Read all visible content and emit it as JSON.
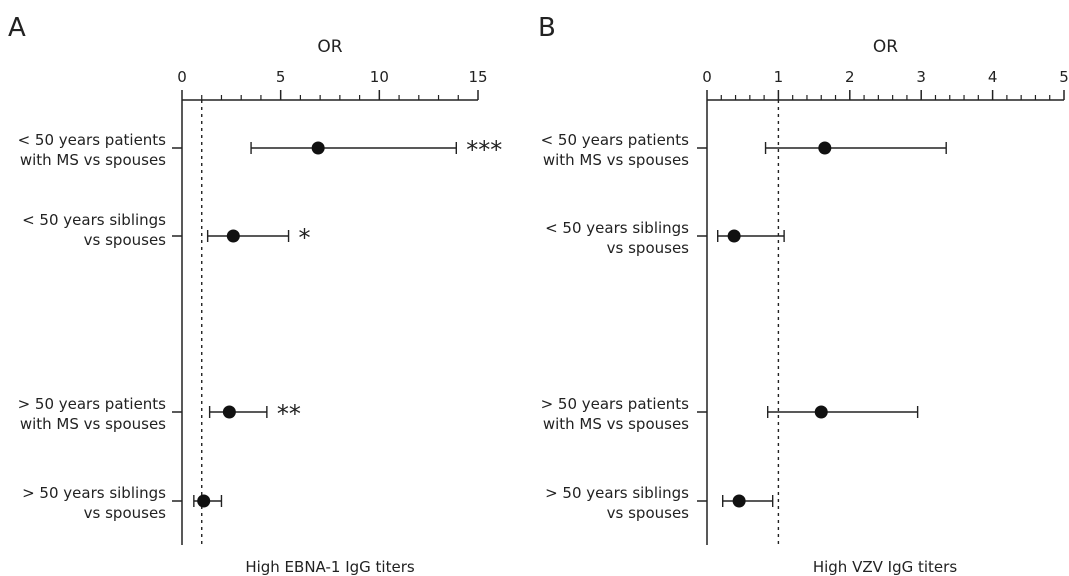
{
  "chart_data": [
    {
      "panel": "A",
      "type": "forest",
      "xlabel": "OR",
      "title": "High EBNA-1 IgG titers",
      "xlim": [
        0,
        15
      ],
      "major_ticks": [
        0,
        5,
        10,
        15
      ],
      "minor_tick_step": 1,
      "reference_line": 1,
      "rows": [
        {
          "label_lines": [
            "< 50 years patients",
            "with MS vs spouses"
          ],
          "estimate": 6.9,
          "lower": 3.5,
          "upper": 13.9,
          "sig": "***"
        },
        {
          "label_lines": [
            "< 50 years siblings",
            "vs spouses"
          ],
          "estimate": 2.6,
          "lower": 1.3,
          "upper": 5.4,
          "sig": "*"
        },
        {
          "label_lines": [
            "> 50 years patients",
            "with MS vs spouses"
          ],
          "estimate": 2.4,
          "lower": 1.4,
          "upper": 4.3,
          "sig": "**"
        },
        {
          "label_lines": [
            "> 50 years siblings",
            "vs spouses"
          ],
          "estimate": 1.1,
          "lower": 0.6,
          "upper": 2.0,
          "sig": ""
        }
      ]
    },
    {
      "panel": "B",
      "type": "forest",
      "xlabel": "OR",
      "title": "High VZV IgG titers",
      "xlim": [
        0,
        5
      ],
      "major_ticks": [
        0,
        1,
        2,
        3,
        4,
        5
      ],
      "minor_tick_step": 0.2,
      "reference_line": 1,
      "rows": [
        {
          "label_lines": [
            "< 50 years patients",
            "with MS vs spouses"
          ],
          "estimate": 1.65,
          "lower": 0.82,
          "upper": 3.35,
          "sig": ""
        },
        {
          "label_lines": [
            "< 50 years siblings",
            "vs spouses"
          ],
          "estimate": 0.38,
          "lower": 0.15,
          "upper": 1.08,
          "sig": ""
        },
        {
          "label_lines": [
            "> 50 years patients",
            "with MS vs spouses"
          ],
          "estimate": 1.6,
          "lower": 0.85,
          "upper": 2.95,
          "sig": ""
        },
        {
          "label_lines": [
            "> 50 years siblings",
            "vs spouses"
          ],
          "estimate": 0.45,
          "lower": 0.22,
          "upper": 0.92,
          "sig": ""
        }
      ]
    }
  ]
}
